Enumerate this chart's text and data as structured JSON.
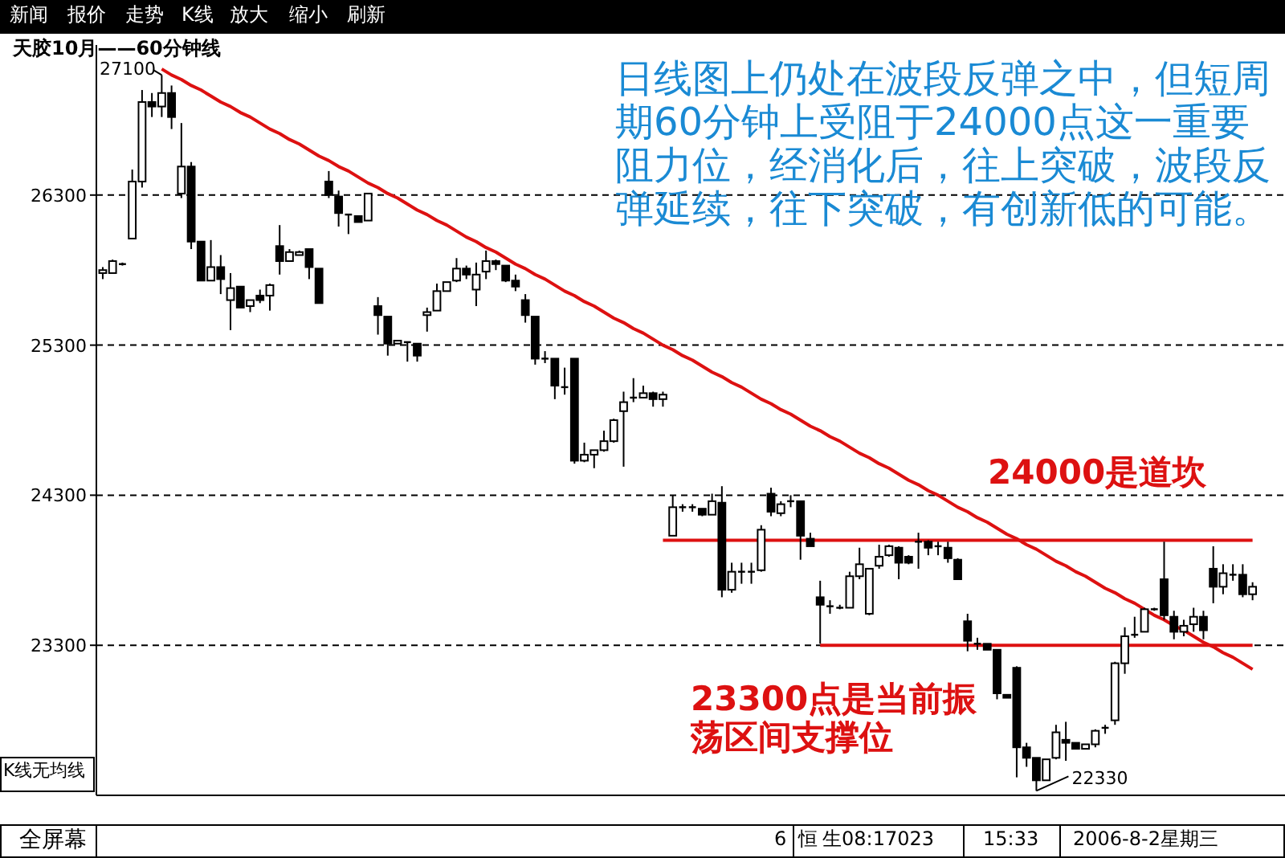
{
  "chart_data": {
    "type": "candlestick",
    "title": "天胶10月——60分钟线",
    "categories": [
      null,
      null,
      null,
      null,
      null,
      null,
      null,
      null,
      null,
      null,
      null,
      null,
      null,
      null,
      null,
      null,
      null,
      null,
      null,
      null,
      null,
      null,
      null,
      null,
      null,
      null,
      null,
      null,
      null,
      null,
      null,
      null,
      null,
      null,
      null,
      null,
      null,
      null,
      null,
      null,
      null,
      null,
      null,
      null,
      null,
      null,
      null,
      null,
      null,
      null,
      null,
      null,
      null,
      null,
      null,
      null,
      null,
      null,
      null,
      null,
      null,
      null,
      null,
      null,
      null,
      null,
      null,
      null,
      null,
      null,
      null,
      null,
      null,
      null,
      null,
      null,
      null,
      null,
      null,
      null,
      null,
      null,
      null,
      null,
      null,
      null,
      null,
      null,
      null,
      null,
      null,
      null,
      null,
      null,
      null,
      null,
      null,
      null,
      null,
      null,
      null,
      null,
      null,
      null,
      null,
      null,
      null,
      null,
      null,
      null,
      null,
      null,
      null,
      null,
      null,
      null,
      null,
      null
    ],
    "ohlc": [
      [
        25780,
        25820,
        25740,
        25800
      ],
      [
        25780,
        25870,
        25780,
        25860
      ],
      [
        25830,
        25850,
        25830,
        25840
      ],
      [
        26010,
        26470,
        26010,
        26390
      ],
      [
        26390,
        27000,
        26350,
        26920
      ],
      [
        26920,
        26980,
        26820,
        26890
      ],
      [
        26890,
        27100,
        26820,
        26980
      ],
      [
        26980,
        27030,
        26740,
        26820
      ],
      [
        26310,
        26780,
        26280,
        26490
      ],
      [
        26490,
        26520,
        25940,
        25990
      ],
      [
        25990,
        25990,
        25730,
        25730
      ],
      [
        25730,
        26000,
        25730,
        25820
      ],
      [
        25820,
        25900,
        25640,
        25740
      ],
      [
        25600,
        25780,
        25400,
        25680
      ],
      [
        25690,
        25690,
        25550,
        25550
      ],
      [
        25560,
        25600,
        25520,
        25600
      ],
      [
        25630,
        25670,
        25580,
        25600
      ],
      [
        25630,
        25710,
        25530,
        25700
      ],
      [
        25960,
        26100,
        25770,
        25860
      ],
      [
        25860,
        25940,
        25860,
        25920
      ],
      [
        25900,
        25930,
        25900,
        25920
      ],
      [
        25940,
        25940,
        25740,
        25820
      ],
      [
        25810,
        25810,
        25580,
        25580
      ],
      [
        26390,
        26460,
        26280,
        26300
      ],
      [
        26290,
        26330,
        26090,
        26180
      ],
      [
        26170,
        26170,
        26040,
        26170
      ],
      [
        26160,
        26160,
        26120,
        26120
      ],
      [
        26130,
        26310,
        26130,
        26310
      ],
      [
        25560,
        25620,
        25370,
        25500
      ],
      [
        25490,
        25490,
        25230,
        25310
      ],
      [
        25310,
        25330,
        25310,
        25330
      ],
      [
        25320,
        25320,
        25190,
        25320
      ],
      [
        25310,
        25310,
        25190,
        25230
      ],
      [
        25500,
        25550,
        25390,
        25520
      ],
      [
        25530,
        25710,
        25530,
        25660
      ],
      [
        25660,
        25720,
        25660,
        25720
      ],
      [
        25730,
        25880,
        25720,
        25810
      ],
      [
        25810,
        25830,
        25740,
        25770
      ],
      [
        25670,
        25850,
        25560,
        25770
      ],
      [
        25790,
        25930,
        25740,
        25860
      ],
      [
        25860,
        25870,
        25800,
        25840
      ],
      [
        25830,
        25830,
        25720,
        25730
      ],
      [
        25730,
        25770,
        25660,
        25690
      ],
      [
        25600,
        25640,
        25450,
        25500
      ],
      [
        25490,
        25490,
        25170,
        25210
      ],
      [
        25210,
        25260,
        25180,
        25210
      ],
      [
        25210,
        25210,
        24940,
        25030
      ],
      [
        25020,
        25150,
        24970,
        25020
      ],
      [
        25210,
        25210,
        24510,
        24530
      ],
      [
        24530,
        24650,
        24520,
        24570
      ],
      [
        24570,
        24600,
        24480,
        24600
      ],
      [
        24600,
        24730,
        24590,
        24660
      ],
      [
        24660,
        24810,
        24650,
        24800
      ],
      [
        24860,
        24990,
        24490,
        24920
      ],
      [
        24950,
        25080,
        24920,
        24950
      ],
      [
        24950,
        25030,
        24950,
        24980
      ],
      [
        24980,
        24990,
        24890,
        24940
      ],
      [
        24940,
        24990,
        24890,
        24970
      ],
      [
        24030,
        24300,
        24030,
        24220
      ],
      [
        24220,
        24240,
        24190,
        24220
      ],
      [
        24220,
        24240,
        24190,
        24220
      ],
      [
        24210,
        24210,
        24160,
        24170
      ],
      [
        24170,
        24310,
        24170,
        24260
      ],
      [
        24250,
        24360,
        23620,
        23670
      ],
      [
        23670,
        23850,
        23650,
        23790
      ],
      [
        23790,
        23850,
        23710,
        23790
      ],
      [
        23790,
        23850,
        23710,
        23790
      ],
      [
        23800,
        24100,
        23790,
        24070
      ],
      [
        24310,
        24350,
        24160,
        24190
      ],
      [
        24180,
        24260,
        24160,
        24240
      ],
      [
        24260,
        24300,
        24220,
        24260
      ],
      [
        24260,
        24260,
        23870,
        24030
      ],
      [
        24010,
        24050,
        23960,
        23960
      ],
      [
        23620,
        23730,
        23310,
        23570
      ],
      [
        23560,
        23600,
        23510,
        23560
      ],
      [
        23550,
        23570,
        23540,
        23550
      ],
      [
        23550,
        23790,
        23550,
        23760
      ],
      [
        23760,
        23950,
        23740,
        23840
      ],
      [
        23510,
        23810,
        23500,
        23810
      ],
      [
        23830,
        23970,
        23810,
        23890
      ],
      [
        23900,
        23970,
        23890,
        23960
      ],
      [
        23950,
        23960,
        23740,
        23850
      ],
      [
        23890,
        23900,
        23840,
        23850
      ],
      [
        23990,
        24050,
        23810,
        23990
      ],
      [
        23990,
        24000,
        23900,
        23950
      ],
      [
        23960,
        23990,
        23900,
        23960
      ],
      [
        23950,
        23990,
        23850,
        23880
      ],
      [
        23870,
        23880,
        23740,
        23740
      ],
      [
        23460,
        23510,
        23260,
        23330
      ],
      [
        23310,
        23350,
        23270,
        23310
      ],
      [
        23310,
        23310,
        23270,
        23270
      ],
      [
        23270,
        23270,
        22940,
        22980
      ],
      [
        22970,
        22970,
        22950,
        22950
      ],
      [
        23150,
        23160,
        22420,
        22620
      ],
      [
        22620,
        22650,
        22490,
        22550
      ],
      [
        22550,
        22550,
        22330,
        22400
      ],
      [
        22400,
        22540,
        22400,
        22540
      ],
      [
        22550,
        22770,
        22540,
        22720
      ],
      [
        22670,
        22790,
        22530,
        22650
      ],
      [
        22650,
        22650,
        22610,
        22610
      ],
      [
        22610,
        22640,
        22610,
        22640
      ],
      [
        22640,
        22740,
        22620,
        22730
      ],
      [
        22750,
        22770,
        22710,
        22750
      ],
      [
        22800,
        23190,
        22770,
        23180
      ],
      [
        23180,
        23420,
        23110,
        23360
      ],
      [
        23370,
        23490,
        23350,
        23370
      ],
      [
        23390,
        23550,
        23390,
        23540
      ],
      [
        23540,
        23550,
        23530,
        23540
      ],
      [
        23740,
        23990,
        23470,
        23500
      ],
      [
        23490,
        23530,
        23340,
        23390
      ],
      [
        23390,
        23470,
        23360,
        23430
      ],
      [
        23440,
        23550,
        23390,
        23490
      ],
      [
        23490,
        23530,
        23340,
        23400
      ],
      [
        23810,
        23960,
        23580,
        23690
      ],
      [
        23690,
        23840,
        23640,
        23780
      ],
      [
        23770,
        23840,
        23730,
        23770
      ],
      [
        23770,
        23840,
        23620,
        23640
      ],
      [
        23640,
        23720,
        23600,
        23690
      ]
    ],
    "series": [
      {
        "type": "line",
        "color": "#dd1111",
        "values": [
          null,
          null,
          null,
          null,
          null,
          null,
          27140,
          27100,
          27070,
          27030,
          27000,
          26960,
          26920,
          26890,
          26850,
          26820,
          26780,
          26740,
          26710,
          26670,
          26640,
          26600,
          26560,
          26530,
          26490,
          26460,
          26420,
          26380,
          26350,
          26310,
          26280,
          26240,
          26200,
          26170,
          26130,
          26100,
          26060,
          26020,
          25990,
          25950,
          25920,
          25880,
          25840,
          25810,
          25770,
          25740,
          25700,
          25660,
          25630,
          25590,
          25560,
          25520,
          25480,
          25450,
          25410,
          25380,
          25340,
          25300,
          25270,
          25230,
          25200,
          25160,
          25120,
          25090,
          25050,
          25020,
          24980,
          24940,
          24910,
          24870,
          24840,
          24800,
          24760,
          24730,
          24690,
          24660,
          24620,
          24580,
          24550,
          24510,
          24480,
          24440,
          24400,
          24370,
          24330,
          24300,
          24260,
          24220,
          24190,
          24150,
          24120,
          24080,
          24040,
          24010,
          23970,
          23940,
          23900,
          23860,
          23830,
          23790,
          23760,
          23720,
          23680,
          23650,
          23610,
          23580,
          23540,
          23500,
          23470,
          23430,
          23400,
          23360,
          23320,
          23290,
          23250,
          23220,
          23180,
          23140
        ]
      },
      {
        "type": "line",
        "color": "#dd1111",
        "values": [
          null,
          null,
          null,
          null,
          null,
          null,
          null,
          null,
          null,
          null,
          null,
          null,
          null,
          null,
          null,
          null,
          null,
          null,
          null,
          null,
          null,
          null,
          null,
          null,
          null,
          null,
          null,
          null,
          null,
          null,
          null,
          null,
          null,
          null,
          null,
          null,
          null,
          null,
          null,
          null,
          null,
          null,
          null,
          null,
          null,
          null,
          null,
          null,
          null,
          null,
          null,
          null,
          null,
          null,
          null,
          null,
          null,
          24000,
          24000,
          24000,
          24000,
          24000,
          24000,
          24000,
          24000,
          24000,
          24000,
          24000,
          24000,
          24000,
          24000,
          24000,
          24000,
          24000,
          24000,
          24000,
          24000,
          24000,
          24000,
          24000,
          24000,
          24000,
          24000,
          24000,
          24000,
          24000,
          24000,
          24000,
          24000,
          24000,
          24000,
          24000,
          24000,
          24000,
          24000,
          24000,
          24000,
          24000,
          24000,
          24000,
          24000,
          24000,
          24000,
          24000,
          24000,
          24000,
          24000,
          24000,
          24000,
          24000,
          24000,
          24000,
          24000,
          24000,
          24000,
          24000,
          24000,
          24000
        ]
      },
      {
        "type": "line",
        "color": "#dd1111",
        "values": [
          null,
          null,
          null,
          null,
          null,
          null,
          null,
          null,
          null,
          null,
          null,
          null,
          null,
          null,
          null,
          null,
          null,
          null,
          null,
          null,
          null,
          null,
          null,
          null,
          null,
          null,
          null,
          null,
          null,
          null,
          null,
          null,
          null,
          null,
          null,
          null,
          null,
          null,
          null,
          null,
          null,
          null,
          null,
          null,
          null,
          null,
          null,
          null,
          null,
          null,
          null,
          null,
          null,
          null,
          null,
          null,
          null,
          null,
          null,
          null,
          null,
          null,
          null,
          null,
          null,
          null,
          null,
          null,
          null,
          null,
          null,
          null,
          null,
          23300,
          23300,
          23300,
          23300,
          23300,
          23300,
          23300,
          23300,
          23300,
          23300,
          23300,
          23300,
          23300,
          23300,
          23300,
          23300,
          23300,
          23300,
          23300,
          23300,
          23300,
          23300,
          23300,
          23300,
          23300,
          23300,
          23300,
          23300,
          23300,
          23300,
          23300,
          23300,
          23300,
          23300,
          23300,
          23300,
          23300,
          23300,
          23300,
          23300,
          23300,
          23300,
          23300,
          23300,
          23300
        ]
      }
    ],
    "ylim": [
      22300,
      27300
    ],
    "yticks": [
      23300,
      24300,
      25300,
      26300
    ],
    "grid": "y",
    "annotations": [
      "日线图上仍处在波段反弹之中，但短周期60分钟上受阻于24000点这一重要阻力位，经消化后，往上突破，波段反弹延续，往下突破，有创新低的可能。",
      "24000是道坎",
      "23300点是当前振荡区间支撑位",
      "27100",
      "22330",
      "K线无均线",
      "新闻",
      "报价",
      "走势",
      "K线",
      "放大",
      "缩小",
      "刷新",
      "全屏幕",
      "6",
      "恒",
      "生08:17023",
      "15:33",
      "2006-8-2星期三"
    ]
  }
}
